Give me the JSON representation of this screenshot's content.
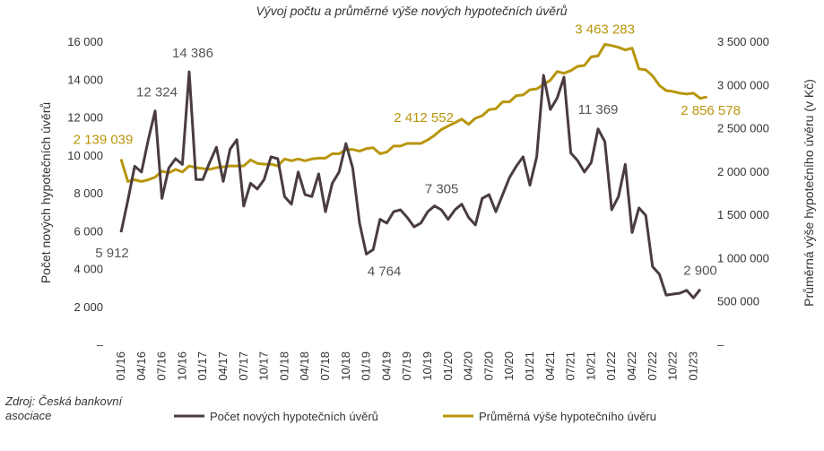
{
  "chart_data": {
    "type": "line",
    "title": "Vývoj počtu a průměrné výše nových hypotečních úvěrů",
    "ylabel_left": "Počet nových hypotečních úvěrů",
    "ylabel_right": "Průměrná výše hypotečního úvěru (v Kč)",
    "y_left_ticks": [
      "16 000",
      "14 000",
      "12 000",
      "10 000",
      "8 000",
      "6 000",
      "4 000",
      "2 000",
      "–"
    ],
    "y_right_ticks": [
      "3 500 000",
      "3 000 000",
      "2 500 000",
      "2 000 000",
      "1 500 000",
      "1 000 000",
      "500 000",
      "–"
    ],
    "ylim_left": [
      0,
      16000
    ],
    "ylim_right": [
      0,
      3500000
    ],
    "x_tick_labels": [
      "01/16",
      "04/16",
      "07/16",
      "10/16",
      "01/17",
      "04/17",
      "07/17",
      "10/17",
      "01/18",
      "04/18",
      "07/18",
      "10/18",
      "01/19",
      "04/19",
      "07/19",
      "10/19",
      "01/20",
      "04/20",
      "07/20",
      "10/20",
      "01/21",
      "04/21",
      "07/21",
      "10/21",
      "01/22",
      "04/22",
      "07/22",
      "10/22",
      "01/23"
    ],
    "series": [
      {
        "name": "Počet nových hypotečních úvěrů",
        "color": "#4a3c41",
        "axis": "left",
        "values": [
          5912,
          7600,
          9400,
          9100,
          10800,
          12324,
          7700,
          9300,
          9800,
          9500,
          14386,
          8700,
          8700,
          9600,
          10400,
          8600,
          10300,
          10800,
          7300,
          8500,
          8200,
          8700,
          9900,
          9800,
          7800,
          7400,
          9100,
          7900,
          7800,
          9000,
          7000,
          8500,
          9100,
          10600,
          9300,
          6400,
          4764,
          5000,
          6600,
          6400,
          7000,
          7100,
          6700,
          6200,
          6400,
          7000,
          7305,
          7100,
          6600,
          7100,
          7400,
          6700,
          6300,
          7700,
          7900,
          7000,
          7900,
          8800,
          9400,
          9900,
          8400,
          9900,
          14200,
          12400,
          13000,
          14100,
          10100,
          9700,
          9100,
          9600,
          11369,
          10700,
          7100,
          7800,
          9500,
          5900,
          7200,
          6800,
          4100,
          3700,
          2600,
          2650,
          2700,
          2850,
          2450,
          2900
        ]
      },
      {
        "name": "Průměrná výše hypotečního úvěru",
        "color": "#b8960c",
        "axis": "right",
        "values": [
          2139039,
          1880000,
          1900000,
          1880000,
          1900000,
          1930000,
          2000000,
          1980000,
          2020000,
          1990000,
          2060000,
          2040000,
          2030000,
          2020000,
          2040000,
          2050000,
          2060000,
          2060000,
          2060000,
          2130000,
          2090000,
          2080000,
          2080000,
          2060000,
          2140000,
          2120000,
          2140000,
          2120000,
          2140000,
          2150000,
          2150000,
          2200000,
          2200000,
          2250000,
          2250000,
          2230000,
          2260000,
          2270000,
          2200000,
          2220000,
          2290000,
          2290000,
          2320000,
          2320000,
          2320000,
          2360000,
          2412552,
          2480000,
          2520000,
          2560000,
          2600000,
          2540000,
          2610000,
          2640000,
          2710000,
          2720000,
          2800000,
          2800000,
          2870000,
          2880000,
          2940000,
          2950000,
          3000000,
          3050000,
          3150000,
          3130000,
          3160000,
          3210000,
          3220000,
          3320000,
          3330000,
          3463283,
          3450000,
          3430000,
          3400000,
          3420000,
          3180000,
          3170000,
          3100000,
          2990000,
          2930000,
          2920000,
          2900000,
          2890000,
          2900000,
          2840000,
          2856578
        ]
      }
    ],
    "data_labels": {
      "count": [
        {
          "index": 0,
          "text": "5 912"
        },
        {
          "index": 5,
          "text": "12 324"
        },
        {
          "index": 10,
          "text": "14 386"
        },
        {
          "index": 36,
          "text": "4 764"
        },
        {
          "index": 46,
          "text": "7 305"
        },
        {
          "index": 70,
          "text": "11 369"
        },
        {
          "index": 85,
          "text": "2 900"
        }
      ],
      "amount": [
        {
          "index": 0,
          "text": "2 139 039"
        },
        {
          "index": 46,
          "text": "2 412 552"
        },
        {
          "index": 71,
          "text": "3 463 283"
        },
        {
          "index": 86,
          "text": "2 856 578"
        }
      ]
    },
    "legend": [
      "Počet nových hypotečních úvěrů",
      "Průměrná výše hypotečního úvěru"
    ],
    "legend_position": "bottom",
    "grid": false
  },
  "source_note": "Zdroj: Česká bankovní asociace"
}
